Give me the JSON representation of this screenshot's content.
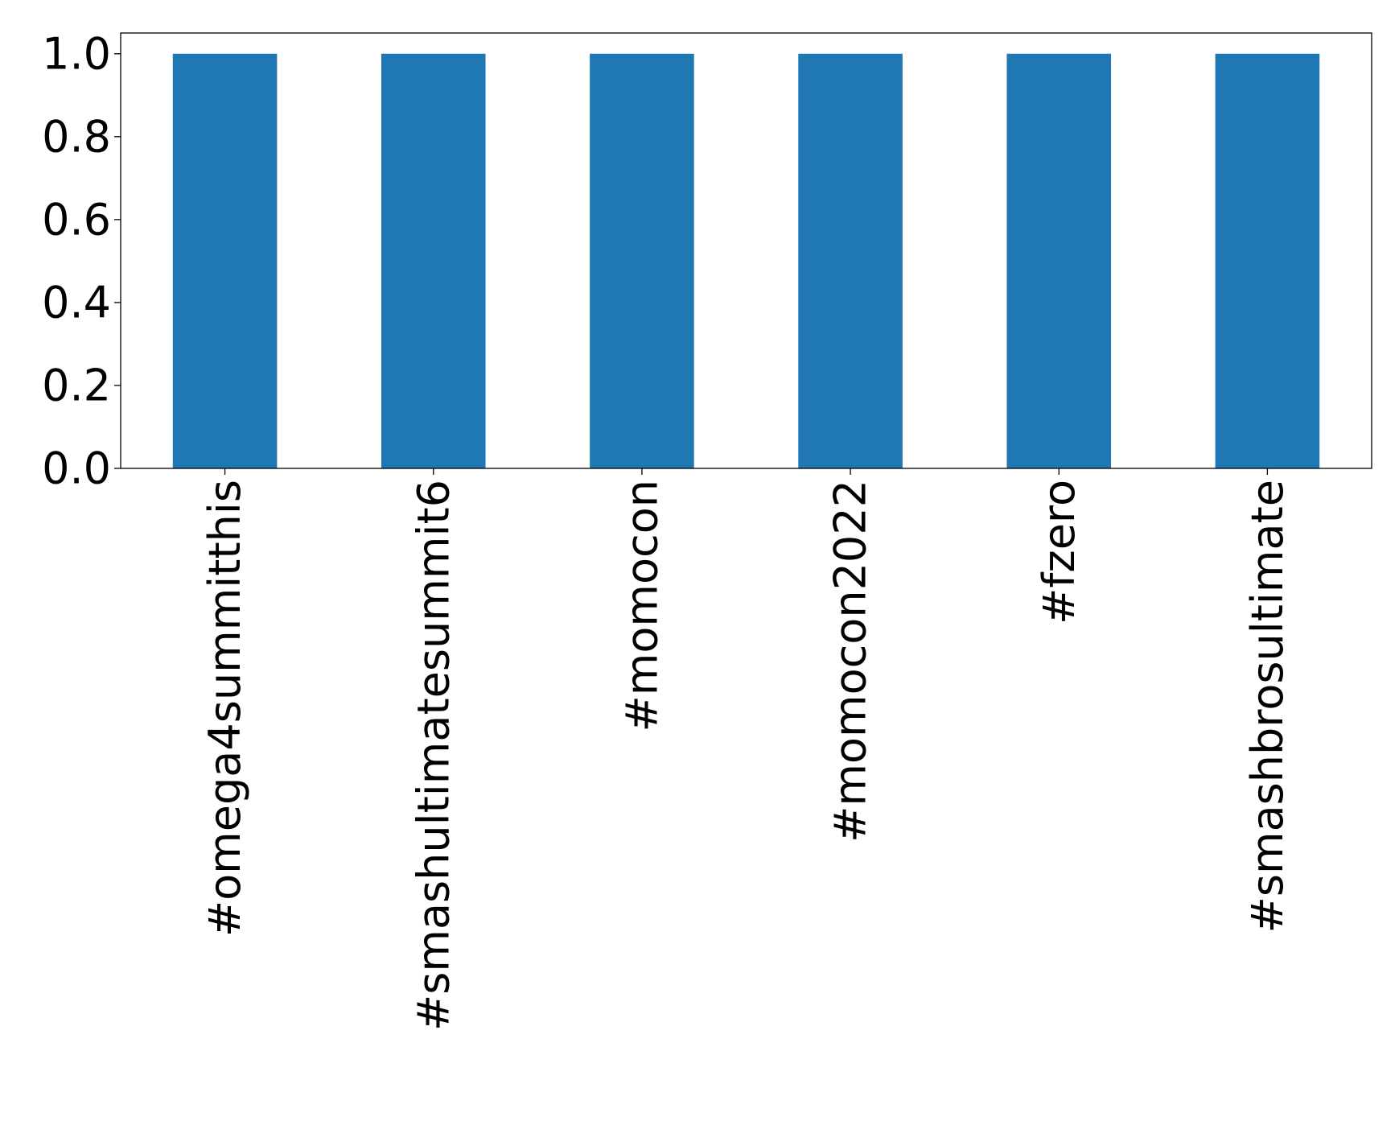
{
  "chart_data": {
    "type": "bar",
    "title": "",
    "xlabel": "",
    "ylabel": "",
    "categories": [
      "#omega4summitthis",
      "#smashultimatesummit6",
      "#momocon",
      "#momocon2022",
      "#fzero",
      "#smashbrosultimate"
    ],
    "values": [
      1.0,
      1.0,
      1.0,
      1.0,
      1.0,
      1.0
    ],
    "ylim": [
      0.0,
      1.05
    ],
    "yticks": [
      "0.0",
      "0.2",
      "0.4",
      "0.6",
      "0.8",
      "1.0"
    ],
    "grid": false,
    "legend": "none",
    "bar_color": "#1f77b4",
    "x_tick_label_rotation": "vertical"
  }
}
